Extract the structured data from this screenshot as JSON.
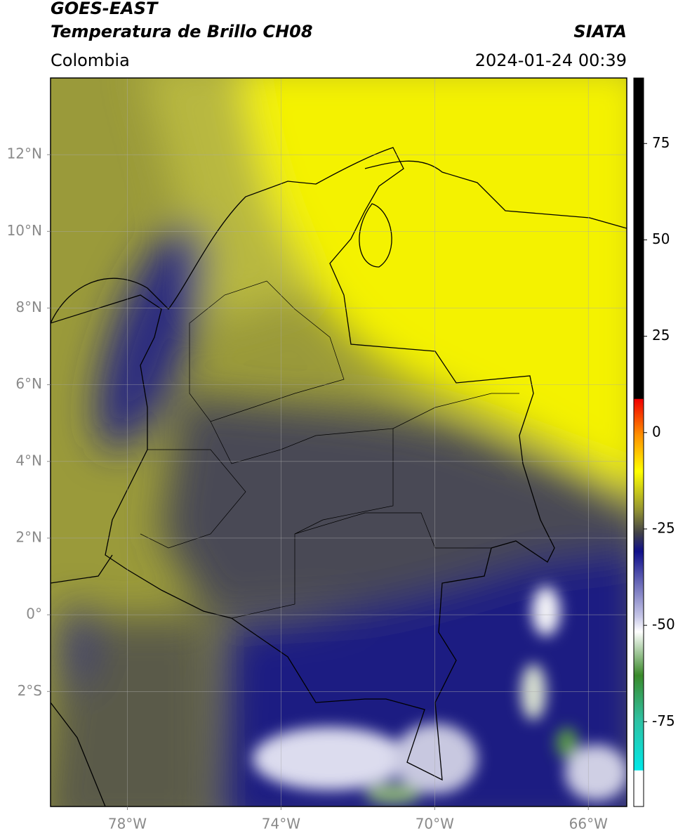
{
  "header": {
    "title": "GOES-EAST",
    "subtitle": "Temperatura de Brillo CH08",
    "source": "SIATA",
    "region": "Colombia",
    "timestamp": "2024-01-24 00:39"
  },
  "map": {
    "xlim": [
      -80,
      -65
    ],
    "ylim": [
      -5,
      14
    ],
    "xticks": [
      {
        "value": -78,
        "label": "78°W"
      },
      {
        "value": -74,
        "label": "74°W"
      },
      {
        "value": -70,
        "label": "70°W"
      },
      {
        "value": -66,
        "label": "66°W"
      }
    ],
    "yticks": [
      {
        "value": 12,
        "label": "12°N"
      },
      {
        "value": 10,
        "label": "10°N"
      },
      {
        "value": 8,
        "label": "8°N"
      },
      {
        "value": 6,
        "label": "6°N"
      },
      {
        "value": 4,
        "label": "4°N"
      },
      {
        "value": 2,
        "label": "2°N"
      },
      {
        "value": 0,
        "label": "0°"
      },
      {
        "value": -2,
        "label": "2°S"
      }
    ],
    "grid": true
  },
  "colorbar": {
    "lim": [
      -97,
      92
    ],
    "ticks": [
      75,
      50,
      25,
      0,
      -25,
      -50,
      -75
    ]
  }
}
